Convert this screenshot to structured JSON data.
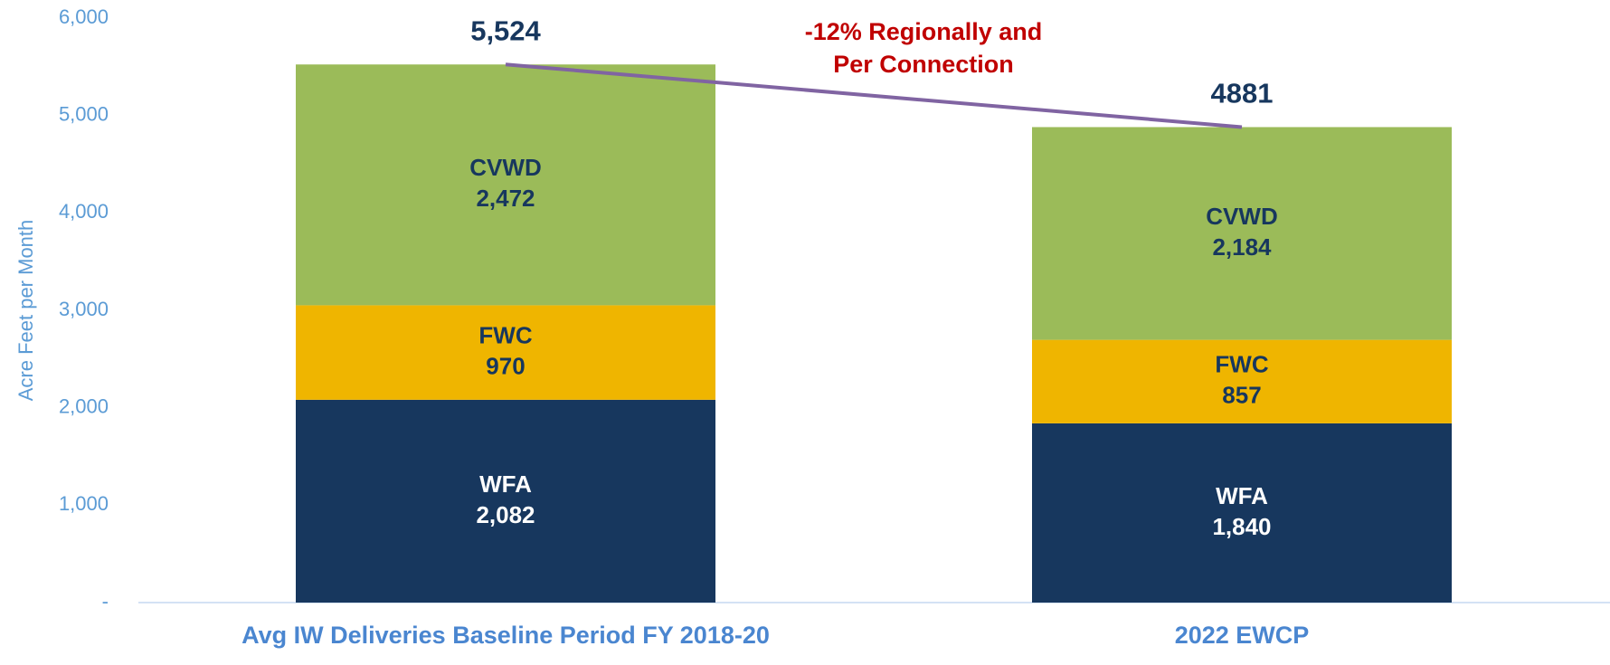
{
  "chart_data": {
    "type": "stacked_bar",
    "y_axis_label": "Acre Feet per Month",
    "categories": [
      "Avg IW Deliveries Baseline Period FY 2018-20",
      "2022 EWCP"
    ],
    "series": [
      {
        "name": "WFA",
        "color": "#17375e",
        "label_color": "#ffffff",
        "values": [
          2082,
          1840
        ],
        "value_labels": [
          "2,082",
          "1,840"
        ]
      },
      {
        "name": "FWC",
        "color": "#efb500",
        "label_color": "#17375e",
        "values": [
          970,
          857
        ]
      },
      {
        "name": "CVWD",
        "color": "#9bbb59",
        "label_color": "#17375e",
        "values": [
          2472,
          2184
        ],
        "value_labels": [
          "2,472",
          "2,184"
        ]
      }
    ],
    "totals": {
      "values": [
        5524,
        4881
      ],
      "value_labels": [
        "5,524",
        "4881"
      ],
      "line_color": "#8064a2"
    },
    "annotation": {
      "lines": [
        "-12% Regionally and",
        "Per Connection"
      ],
      "color": "#c00000"
    },
    "ylim": [
      0,
      6000
    ],
    "yticks": [
      {
        "value": 0,
        "label": "-"
      },
      {
        "value": 1000,
        "label": "1,000"
      },
      {
        "value": 2000,
        "label": "2,000"
      },
      {
        "value": 3000,
        "label": "3,000"
      },
      {
        "value": 4000,
        "label": "4,000"
      },
      {
        "value": 5000,
        "label": "5,000"
      },
      {
        "value": 6000,
        "label": "6,000"
      }
    ],
    "grid": false
  }
}
